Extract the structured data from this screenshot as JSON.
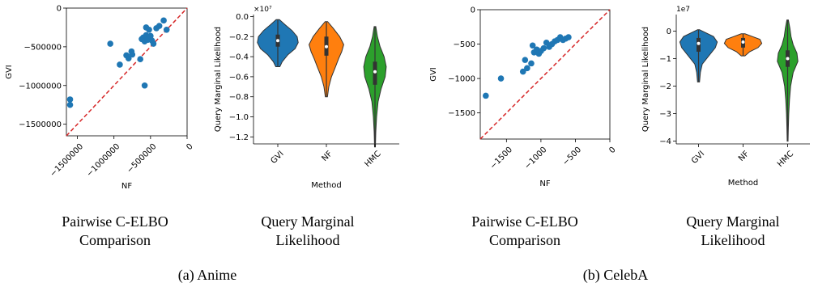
{
  "colors": {
    "point": "#1f77b4",
    "diagonal": "#d62728",
    "gvi": "#1f77b4",
    "nf": "#ff7f0e",
    "hmc": "#2ca02c"
  },
  "captions": {
    "anime_left": [
      "Pairwise C-ELBO",
      "Comparison"
    ],
    "anime_right": [
      "Query Marginal",
      "Likelihood"
    ],
    "celeba_left": [
      "Pairwise C-ELBO",
      "Comparison"
    ],
    "celeba_right": [
      "Query Marginal",
      "Likelihood"
    ],
    "anime_sub": "(a) Anime",
    "celeba_sub": "(b) CelebA"
  },
  "chart_data": [
    {
      "id": "anime_scatter",
      "type": "scatter",
      "xlabel": "NF",
      "ylabel": "GVI",
      "xlim": [
        -1650000,
        0
      ],
      "ylim": [
        -1650000,
        0
      ],
      "xticks": [
        -1500000,
        -1000000,
        -500000,
        0
      ],
      "xtick_labels": [
        "−1500000",
        "−1000000",
        "−500000",
        "0"
      ],
      "yticks": [
        0,
        -500000,
        -1000000,
        -1500000
      ],
      "ytick_labels": [
        "0",
        "−500000",
        "−1000000",
        "−1500000"
      ],
      "diagonal": true,
      "x": [
        -1600000,
        -1600000,
        -1050000,
        -920000,
        -830000,
        -800000,
        -760000,
        -750000,
        -640000,
        -620000,
        -600000,
        -580000,
        -560000,
        -560000,
        -540000,
        -520000,
        -500000,
        -480000,
        -460000,
        -420000,
        -380000,
        -320000,
        -280000,
        -580000
      ],
      "y": [
        -1180000,
        -1250000,
        -460000,
        -730000,
        -610000,
        -650000,
        -560000,
        -600000,
        -660000,
        -400000,
        -380000,
        -430000,
        -250000,
        -350000,
        -410000,
        -280000,
        -360000,
        -420000,
        -460000,
        -260000,
        -230000,
        -160000,
        -280000,
        -1000000
      ]
    },
    {
      "id": "anime_violin",
      "type": "violin",
      "xlabel": "Method",
      "ylabel": "Query Marginal Likelihood",
      "scale_label": "×10⁷",
      "categories": [
        "GVI",
        "NF",
        "HMC"
      ],
      "ylim": [
        -1.27,
        0.02
      ],
      "yticks": [
        0.0,
        -0.2,
        -0.4,
        -0.6,
        -0.8,
        -1.0,
        -1.2
      ],
      "ytick_labels": [
        "0.0",
        "−0.2",
        "−0.4",
        "−0.6",
        "−0.8",
        "−1.0",
        "−1.2"
      ],
      "series": [
        {
          "min": -0.5,
          "max": -0.03,
          "q1": -0.3,
          "median": -0.24,
          "q3": -0.18,
          "profile": [
            [
              -0.5,
              0.1
            ],
            [
              -0.45,
              0.22
            ],
            [
              -0.38,
              0.5
            ],
            [
              -0.32,
              0.85
            ],
            [
              -0.26,
              1.0
            ],
            [
              -0.2,
              0.95
            ],
            [
              -0.14,
              0.7
            ],
            [
              -0.08,
              0.35
            ],
            [
              -0.03,
              0.08
            ]
          ]
        },
        {
          "min": -0.8,
          "max": -0.05,
          "q1": -0.39,
          "median": -0.3,
          "q3": -0.2,
          "profile": [
            [
              -0.8,
              0.05
            ],
            [
              -0.7,
              0.12
            ],
            [
              -0.6,
              0.25
            ],
            [
              -0.5,
              0.45
            ],
            [
              -0.42,
              0.6
            ],
            [
              -0.35,
              0.75
            ],
            [
              -0.28,
              0.85
            ],
            [
              -0.2,
              0.65
            ],
            [
              -0.12,
              0.35
            ],
            [
              -0.05,
              0.06
            ]
          ]
        },
        {
          "min": -1.3,
          "max": -0.1,
          "q1": -0.68,
          "median": -0.55,
          "q3": -0.45,
          "profile": [
            [
              -1.3,
              0.02
            ],
            [
              -1.15,
              0.04
            ],
            [
              -1.0,
              0.08
            ],
            [
              -0.85,
              0.15
            ],
            [
              -0.72,
              0.3
            ],
            [
              -0.6,
              0.5
            ],
            [
              -0.5,
              0.55
            ],
            [
              -0.4,
              0.45
            ],
            [
              -0.3,
              0.25
            ],
            [
              -0.2,
              0.12
            ],
            [
              -0.1,
              0.04
            ]
          ]
        }
      ]
    },
    {
      "id": "celeba_scatter",
      "type": "scatter",
      "xlabel": "NF",
      "ylabel": "GVI",
      "xlim": [
        -1880,
        0
      ],
      "ylim": [
        -1880,
        0
      ],
      "xticks": [
        -1500,
        -1000,
        -500,
        0
      ],
      "xtick_labels": [
        "−1500",
        "−1000",
        "−500",
        "0"
      ],
      "yticks": [
        0,
        -500,
        -1000,
        -1500
      ],
      "ytick_labels": [
        "0",
        "−500",
        "−1000",
        "−1500"
      ],
      "diagonal": true,
      "x": [
        -1800,
        -1580,
        -1260,
        -1230,
        -1200,
        -1140,
        -1120,
        -1100,
        -1060,
        -1030,
        -1000,
        -960,
        -920,
        -880,
        -840,
        -800,
        -760,
        -720,
        -680,
        -640,
        -600
      ],
      "y": [
        -1250,
        -1000,
        -900,
        -730,
        -850,
        -780,
        -520,
        -620,
        -580,
        -640,
        -600,
        -560,
        -480,
        -540,
        -500,
        -460,
        -440,
        -400,
        -440,
        -420,
        -400
      ]
    },
    {
      "id": "celeba_violin",
      "type": "violin",
      "xlabel": "Method",
      "ylabel": "Query Marginal Likelihood",
      "scale_label": "1e7",
      "categories": [
        "GVI",
        "NF",
        "HMC"
      ],
      "ylim": [
        -4.1,
        0.6
      ],
      "yticks": [
        0,
        -1,
        -2,
        -3,
        -4
      ],
      "ytick_labels": [
        "0",
        "−1",
        "−2",
        "−3",
        "−4"
      ],
      "series": [
        {
          "min": -1.85,
          "max": 0.05,
          "q1": -0.75,
          "median": -0.45,
          "q3": -0.25,
          "profile": [
            [
              -1.85,
              0.05
            ],
            [
              -1.5,
              0.1
            ],
            [
              -1.2,
              0.2
            ],
            [
              -0.9,
              0.55
            ],
            [
              -0.6,
              0.9
            ],
            [
              -0.4,
              1.0
            ],
            [
              -0.2,
              0.8
            ],
            [
              0.0,
              0.2
            ],
            [
              0.05,
              0.05
            ]
          ]
        },
        {
          "min": -0.9,
          "max": -0.1,
          "q1": -0.6,
          "median": -0.4,
          "q3": -0.25,
          "profile": [
            [
              -0.9,
              0.1
            ],
            [
              -0.75,
              0.35
            ],
            [
              -0.6,
              0.8
            ],
            [
              -0.45,
              1.0
            ],
            [
              -0.3,
              0.9
            ],
            [
              -0.2,
              0.5
            ],
            [
              -0.1,
              0.1
            ]
          ]
        },
        {
          "min": -4.0,
          "max": 0.4,
          "q1": -1.3,
          "median": -1.0,
          "q3": -0.7,
          "profile": [
            [
              -4.0,
              0.02
            ],
            [
              -3.5,
              0.04
            ],
            [
              -3.0,
              0.06
            ],
            [
              -2.5,
              0.1
            ],
            [
              -2.0,
              0.16
            ],
            [
              -1.5,
              0.3
            ],
            [
              -1.1,
              0.55
            ],
            [
              -0.8,
              0.5
            ],
            [
              -0.5,
              0.3
            ],
            [
              -0.2,
              0.18
            ],
            [
              0.1,
              0.12
            ],
            [
              0.4,
              0.04
            ]
          ]
        }
      ]
    }
  ]
}
